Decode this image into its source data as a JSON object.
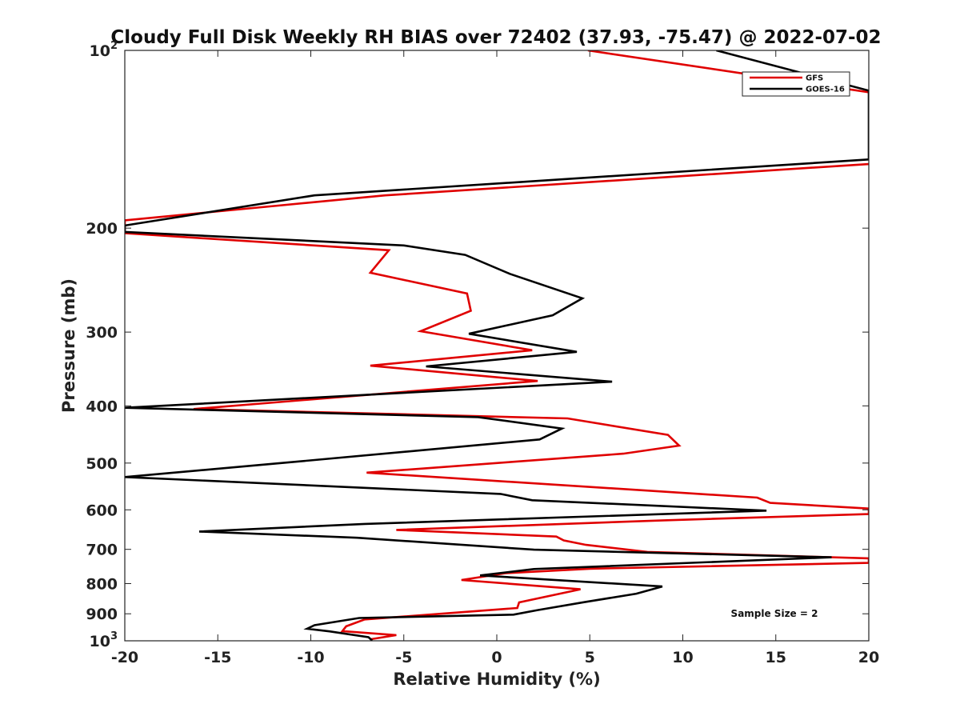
{
  "chart_data": {
    "type": "line",
    "title": "Cloudy Full Disk Weekly RH BIAS over 72402 (37.93, -75.47) @ 2022-07-02",
    "xlabel": "Relative Humidity (%)",
    "ylabel": "Pressure (mb)",
    "xlim": [
      -20,
      20
    ],
    "ylim": [
      1000,
      100
    ],
    "yscale": "log",
    "y_reversed": true,
    "x_ticks": [
      "-20",
      "-15",
      "-10",
      "-5",
      "0",
      "5",
      "10",
      "15",
      "20"
    ],
    "y_ticks": [
      {
        "value": 100,
        "base": "10",
        "exp": "2"
      },
      {
        "value": 200,
        "label": "200"
      },
      {
        "value": 300,
        "label": "300"
      },
      {
        "value": 400,
        "label": "400"
      },
      {
        "value": 500,
        "label": "500"
      },
      {
        "value": 600,
        "label": "600"
      },
      {
        "value": 700,
        "label": "700"
      },
      {
        "value": 800,
        "label": "800"
      },
      {
        "value": 900,
        "label": "900"
      },
      {
        "value": 1000,
        "base": "10",
        "exp": "3"
      }
    ],
    "grid": false,
    "legend_position": "top-right",
    "annotation": "Sample Size = 2",
    "series": [
      {
        "name": "GFS",
        "color": "#e00000",
        "points": [
          [
            4.9,
            100
          ],
          [
            21,
            119
          ],
          [
            21,
            155
          ],
          [
            -6,
            176
          ],
          [
            -20,
            194
          ],
          [
            -20,
            204
          ],
          [
            -5.8,
            218
          ],
          [
            -6.8,
            238
          ],
          [
            -1.6,
            258
          ],
          [
            -1.4,
            276
          ],
          [
            -4.1,
            299
          ],
          [
            1.9,
            322
          ],
          [
            -6.8,
            342
          ],
          [
            2.2,
            363
          ],
          [
            -16.3,
            405
          ],
          [
            3.8,
            420
          ],
          [
            9.2,
            448
          ],
          [
            9.8,
            467
          ],
          [
            6.8,
            482
          ],
          [
            0.7,
            498
          ],
          [
            -7.0,
            519
          ],
          [
            14.0,
            572
          ],
          [
            14.7,
            584
          ],
          [
            20,
            597
          ],
          [
            20,
            610
          ],
          [
            9.0,
            625
          ],
          [
            -5.4,
            649
          ],
          [
            3.2,
            666
          ],
          [
            3.6,
            676
          ],
          [
            4.8,
            688
          ],
          [
            8.1,
            707
          ],
          [
            20,
            725
          ],
          [
            20,
            738
          ],
          [
            5.0,
            755
          ],
          [
            0.5,
            768
          ],
          [
            -1.9,
            789
          ],
          [
            4.5,
            818
          ],
          [
            1.2,
            861
          ],
          [
            1.1,
            880
          ],
          [
            -7.1,
            920
          ],
          [
            -8.1,
            945
          ],
          [
            -8.3,
            963
          ],
          [
            -5.4,
            978
          ],
          [
            -6.8,
            994
          ]
        ]
      },
      {
        "name": "GOES-16",
        "color": "#000000",
        "points": [
          [
            11.8,
            100
          ],
          [
            20,
            117
          ],
          [
            20,
            153
          ],
          [
            -9.8,
            176
          ],
          [
            -20,
            198
          ],
          [
            -20,
            203
          ],
          [
            -5.0,
            214
          ],
          [
            -1.7,
            222
          ],
          [
            0.7,
            239
          ],
          [
            4.6,
            263
          ],
          [
            3.0,
            281
          ],
          [
            -1.5,
            302
          ],
          [
            4.3,
            324
          ],
          [
            -3.8,
            343
          ],
          [
            6.2,
            364
          ],
          [
            -20,
            403
          ],
          [
            -1.0,
            418
          ],
          [
            3.5,
            437
          ],
          [
            2.3,
            456
          ],
          [
            -11.3,
            499
          ],
          [
            -20,
            528
          ],
          [
            0.2,
            564
          ],
          [
            1.9,
            578
          ],
          [
            14.5,
            602
          ],
          [
            -7.1,
            634
          ],
          [
            -16.0,
            653
          ],
          [
            -7.5,
            669
          ],
          [
            2.0,
            701
          ],
          [
            18.0,
            722
          ],
          [
            2.0,
            756
          ],
          [
            0.3,
            767
          ],
          [
            -0.9,
            775
          ],
          [
            8.9,
            809
          ],
          [
            7.5,
            832
          ],
          [
            4.7,
            860
          ],
          [
            2.2,
            887
          ],
          [
            0.9,
            903
          ],
          [
            -7.4,
            915
          ],
          [
            -9.8,
            941
          ],
          [
            -10.2,
            954
          ],
          [
            -9.0,
            964
          ],
          [
            -6.9,
            986
          ],
          [
            -6.7,
            999
          ]
        ]
      }
    ]
  }
}
